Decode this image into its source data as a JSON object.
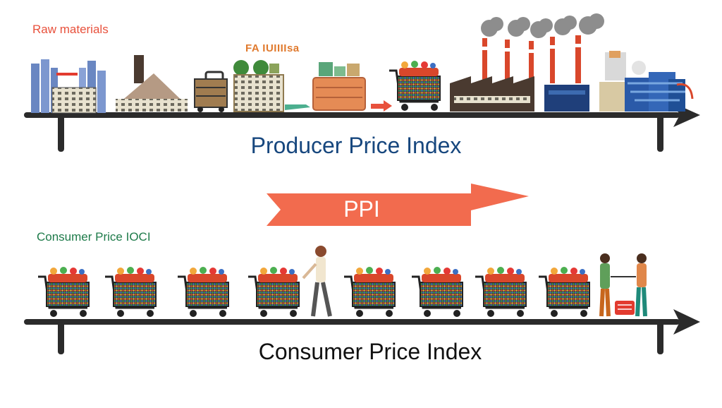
{
  "labels": {
    "raw_materials": "Raw materials",
    "garbled_sign": "FA IUIIIIsa",
    "consumer_price_small": "Consumer Price IOCI",
    "producer_price_index": "Producer Price Index",
    "ppi_arrow": "PPI",
    "consumer_price_index": "Consumer Price Index"
  },
  "colors": {
    "ppi_arrow": "#f26b4e",
    "ppi_title": "#17477e",
    "raw_label": "#e8513c",
    "cpi_small_label": "#1e7b4a",
    "timeline": "#2b2b2b"
  },
  "icons": {
    "ppi_row": [
      "industrial-plant-icon",
      "material-pile-icon",
      "cart-icon",
      "warehouse-icon",
      "crate-icon",
      "arrow-icon",
      "shopping-cart-icon",
      "factory-icon",
      "refinery-icon"
    ],
    "cpi_row": [
      "shopping-cart-icon",
      "shopping-cart-icon",
      "shopping-cart-icon",
      "shopping-cart-icon",
      "person-icon",
      "shopping-cart-icon",
      "shopping-cart-icon",
      "shopping-cart-icon",
      "shopping-cart-icon",
      "people-with-cart-icon"
    ]
  }
}
